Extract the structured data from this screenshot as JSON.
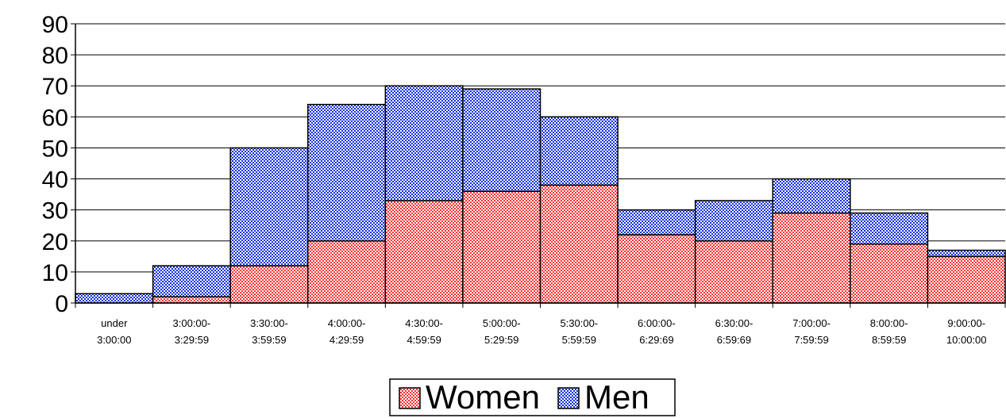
{
  "colors": {
    "women_base": "#ff3030",
    "women_check": "#ffffff",
    "men_base": "#1030e0",
    "men_check": "#ffffff",
    "grid": "#000000",
    "axis": "#000000"
  },
  "chart_data": {
    "type": "bar",
    "stacked": true,
    "title": "",
    "xlabel": "",
    "ylabel": "",
    "ylim": [
      0,
      90
    ],
    "yticks": [
      0,
      10,
      20,
      30,
      40,
      50,
      60,
      70,
      80,
      90
    ],
    "grid": true,
    "legend_position": "bottom-center",
    "categories": [
      [
        "under",
        "3:00:00"
      ],
      [
        "3:00:00-",
        "3:29:59"
      ],
      [
        "3:30:00-",
        "3:59:59"
      ],
      [
        "4:00:00-",
        "4:29:59"
      ],
      [
        "4:30:00-",
        "4:59:59"
      ],
      [
        "5:00:00-",
        "5:29:59"
      ],
      [
        "5:30:00-",
        "5:59:59"
      ],
      [
        "6:00:00-",
        "6:29:69"
      ],
      [
        "6:30:00-",
        "6:59:69"
      ],
      [
        "7:00:00-",
        "7:59:59"
      ],
      [
        "8:00:00-",
        "8:59:59"
      ],
      [
        "9:00:00-",
        "10:00:00"
      ]
    ],
    "series": [
      {
        "name": "Women",
        "values": [
          0,
          2,
          12,
          20,
          33,
          36,
          38,
          22,
          20,
          29,
          19,
          15
        ]
      },
      {
        "name": "Men",
        "values": [
          3,
          10,
          38,
          44,
          37,
          33,
          22,
          8,
          13,
          11,
          10,
          2
        ]
      }
    ]
  }
}
